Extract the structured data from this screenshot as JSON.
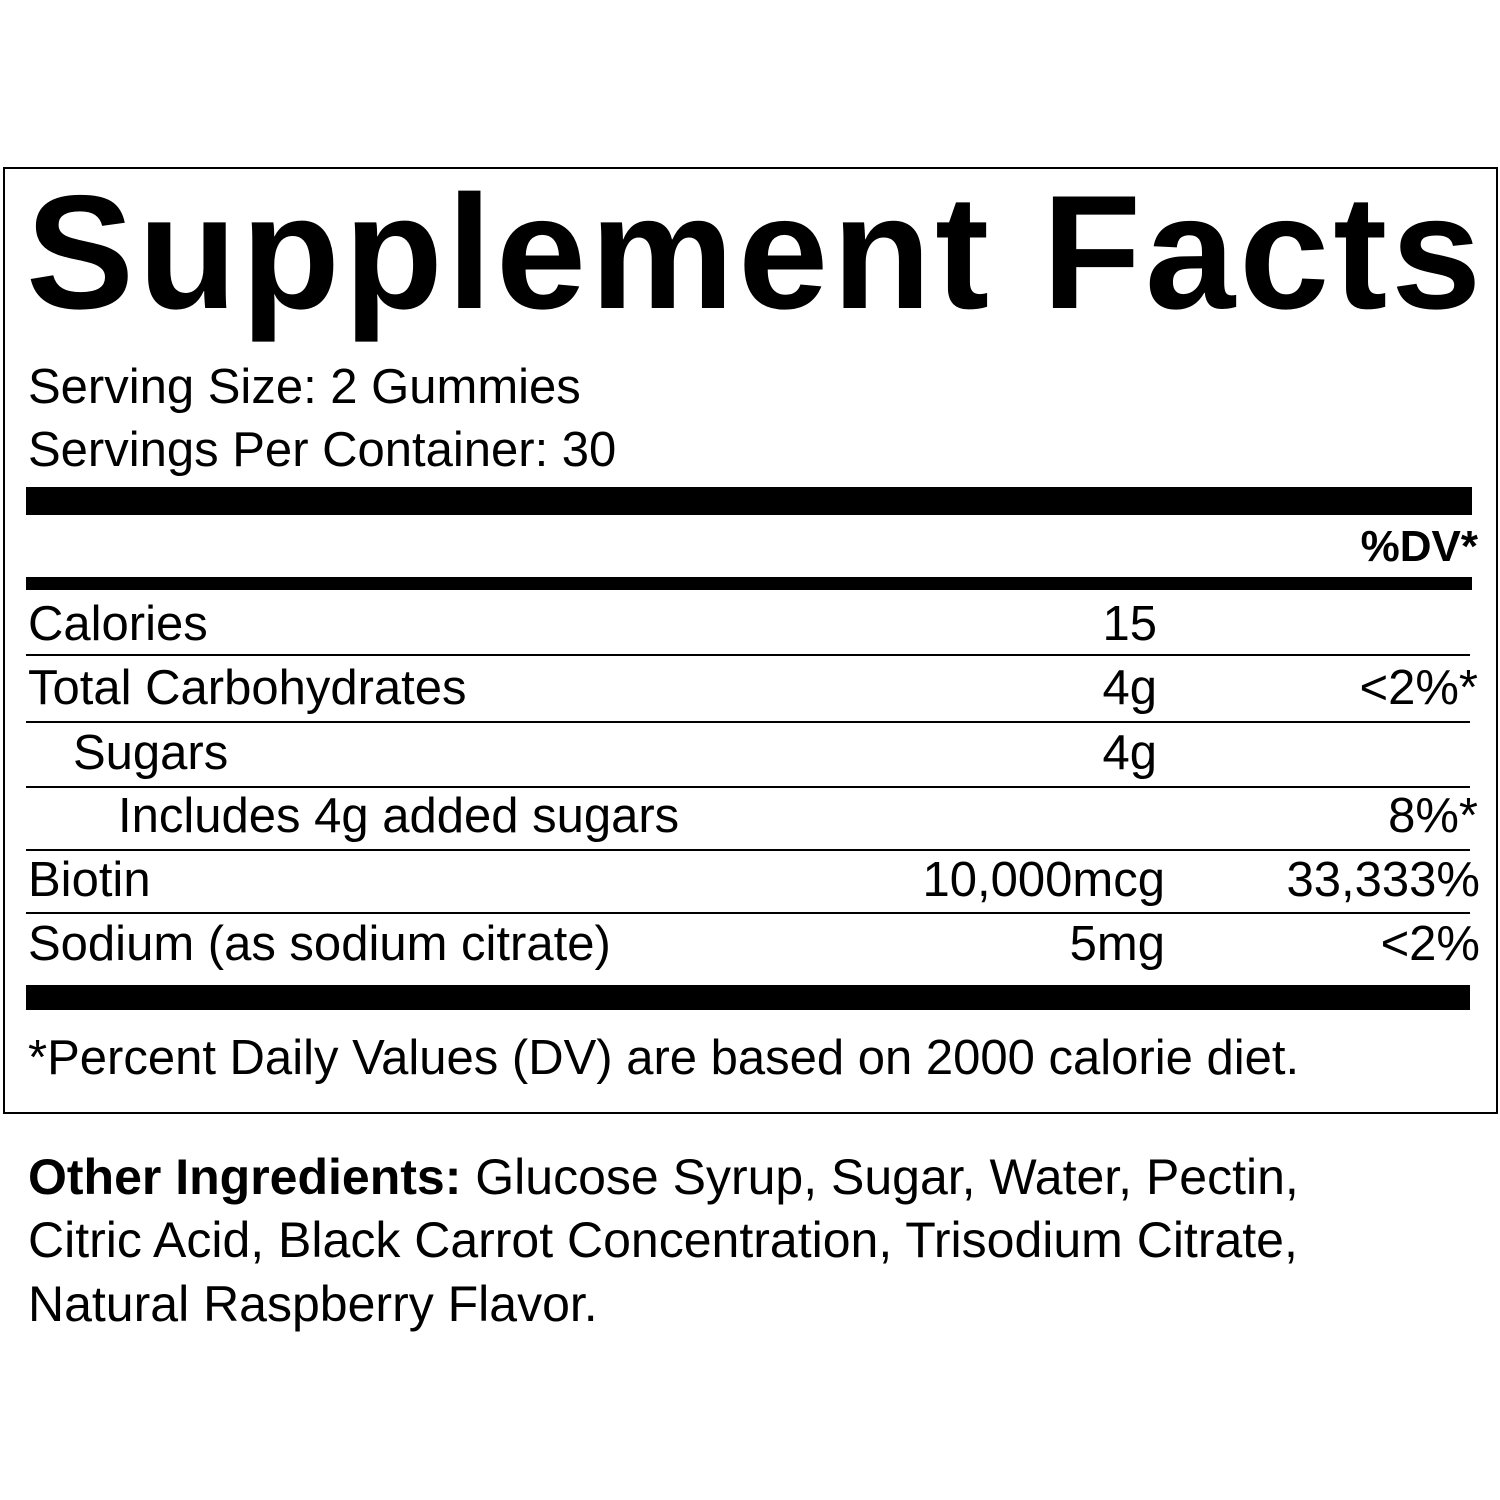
{
  "title": "Supplement Facts",
  "serving_size": "Serving Size: 2 Gummies",
  "servings_per_container": "Servings Per Container: 30",
  "dv_header": "%DV*",
  "rows": [
    {
      "name": "Calories",
      "amount": "15",
      "dv": ""
    },
    {
      "name": "Total Carbohydrates",
      "amount": "4g",
      "dv": "<2%*"
    },
    {
      "name": "Sugars",
      "amount": "4g",
      "dv": ""
    },
    {
      "name": "Includes 4g added sugars",
      "amount": "",
      "dv": "8%*"
    },
    {
      "name": "Biotin",
      "amount": "10,000mcg",
      "dv": "33,333%"
    },
    {
      "name": "Sodium (as sodium citrate)",
      "amount": "5mg",
      "dv": "<2%"
    }
  ],
  "footnote": "*Percent Daily Values (DV) are based on 2000 calorie diet.",
  "other_ingredients": {
    "label": "Other Ingredients:",
    "line1": "Glucose Syrup, Sugar, Water, Pectin,",
    "line2": "Citric Acid, Black Carrot Concentration, Trisodium Citrate,",
    "line3": "Natural Raspberry Flavor."
  }
}
